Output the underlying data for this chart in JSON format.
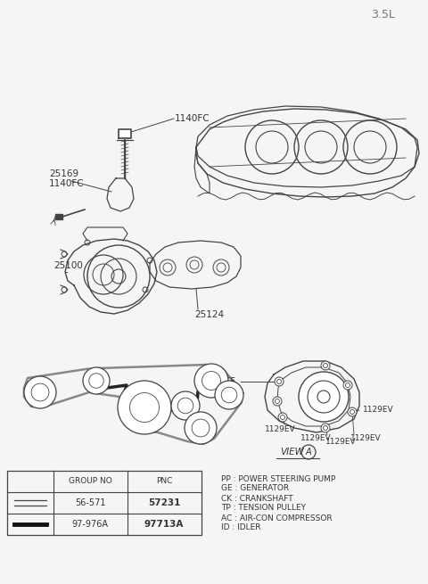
{
  "title": "3.5L",
  "bg": "#f5f5f5",
  "lc": "#444444",
  "legend_items": [
    "PP : POWER STEERING PUMP",
    "GE : GENERATOR",
    "CK : CRANKSHAFT",
    "TP : TENSION PULLEY",
    "AC : AIR-CON COMPRESSOR",
    "ID : IDLER"
  ],
  "table_rows": [
    [
      "56-571",
      "57231"
    ],
    [
      "97-976A",
      "97713A"
    ]
  ]
}
